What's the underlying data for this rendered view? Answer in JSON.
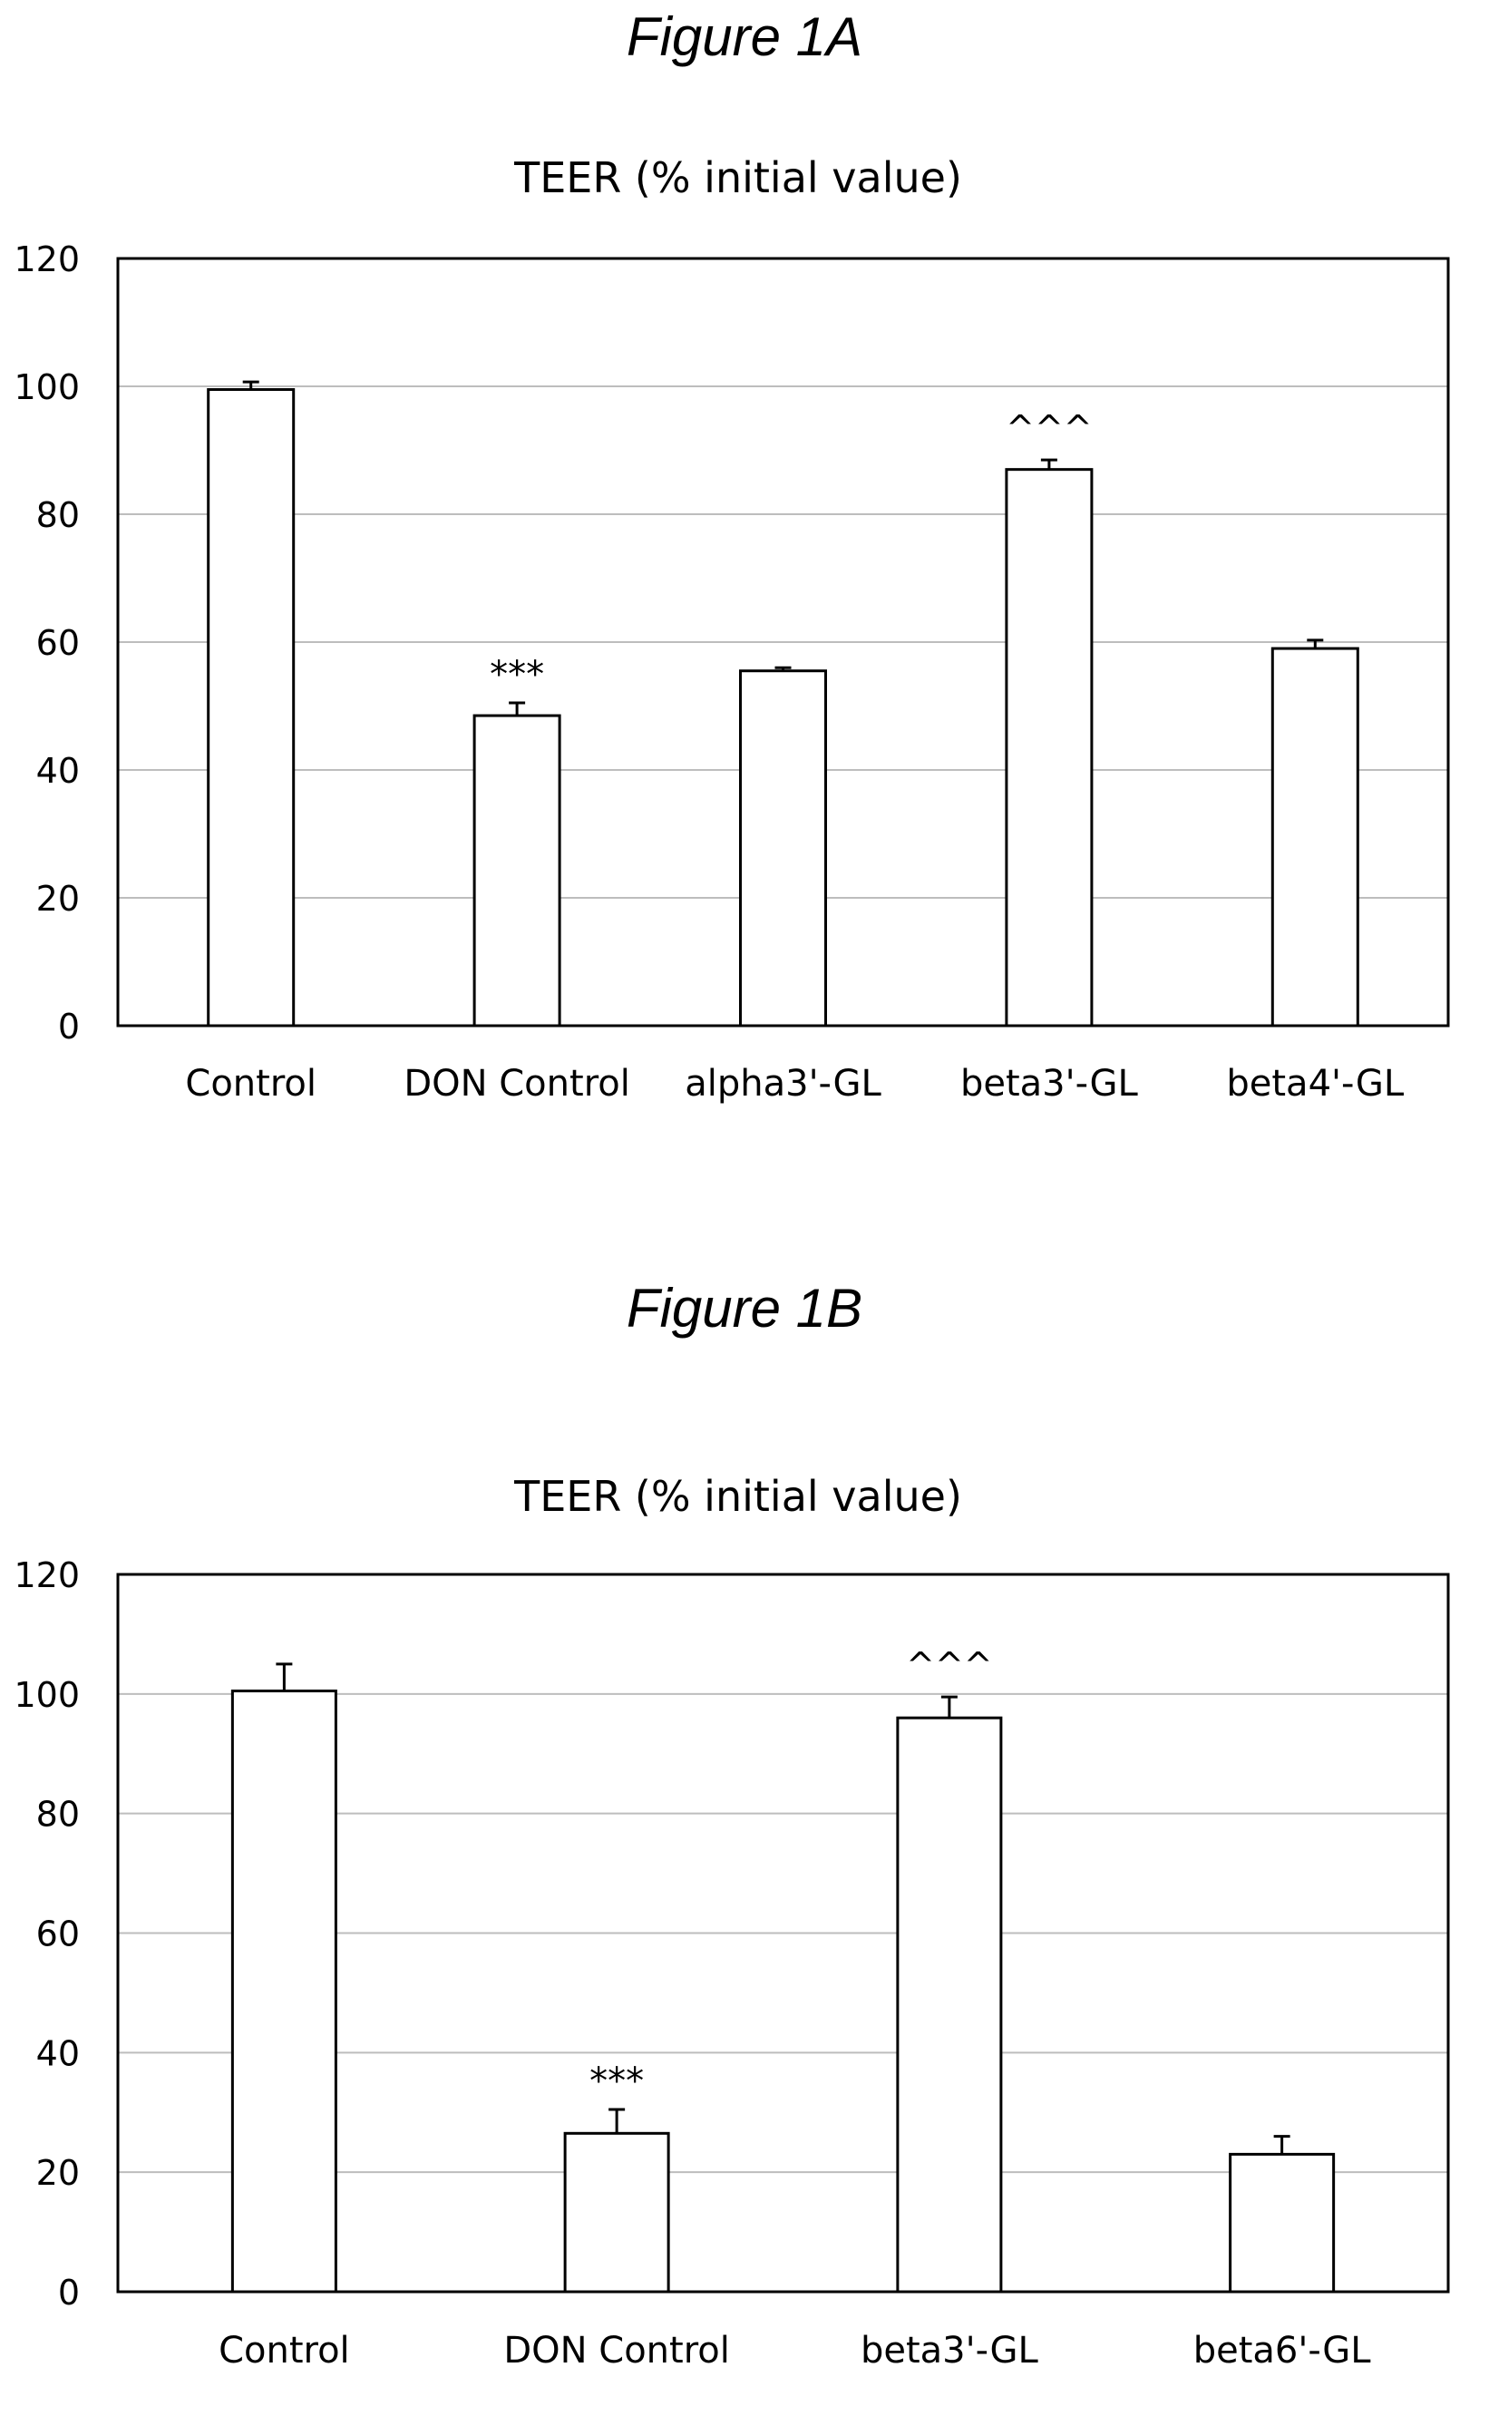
{
  "figures": [
    {
      "label": "Figure 1A"
    },
    {
      "label": "Figure 1B"
    }
  ],
  "chart_data": [
    {
      "type": "bar",
      "title": "TEER (% initial value)",
      "xlabel": "",
      "ylabel": "",
      "ylim": [
        0,
        120
      ],
      "yticks": [
        0,
        20,
        40,
        60,
        80,
        100,
        120
      ],
      "grid": true,
      "categories": [
        "Control",
        "DON Control",
        "alpha3'-GL",
        "beta3'-GL",
        "beta4'-GL"
      ],
      "values": [
        99.5,
        48.5,
        55.5,
        87,
        59
      ],
      "errors": [
        1.2,
        2,
        0.5,
        1.5,
        1.3
      ],
      "annotations": [
        "",
        "***",
        "",
        "^^^",
        ""
      ]
    },
    {
      "type": "bar",
      "title": "TEER (% initial value)",
      "xlabel": "",
      "ylabel": "",
      "ylim": [
        0,
        120
      ],
      "yticks": [
        0,
        20,
        40,
        60,
        80,
        100,
        120
      ],
      "grid": true,
      "categories": [
        "Control",
        "DON Control",
        "beta3'-GL",
        "beta6'-GL"
      ],
      "values": [
        100.5,
        26.5,
        96,
        23
      ],
      "errors": [
        4.5,
        4,
        3.5,
        3
      ],
      "annotations": [
        "",
        "***",
        "^^^",
        ""
      ]
    }
  ]
}
